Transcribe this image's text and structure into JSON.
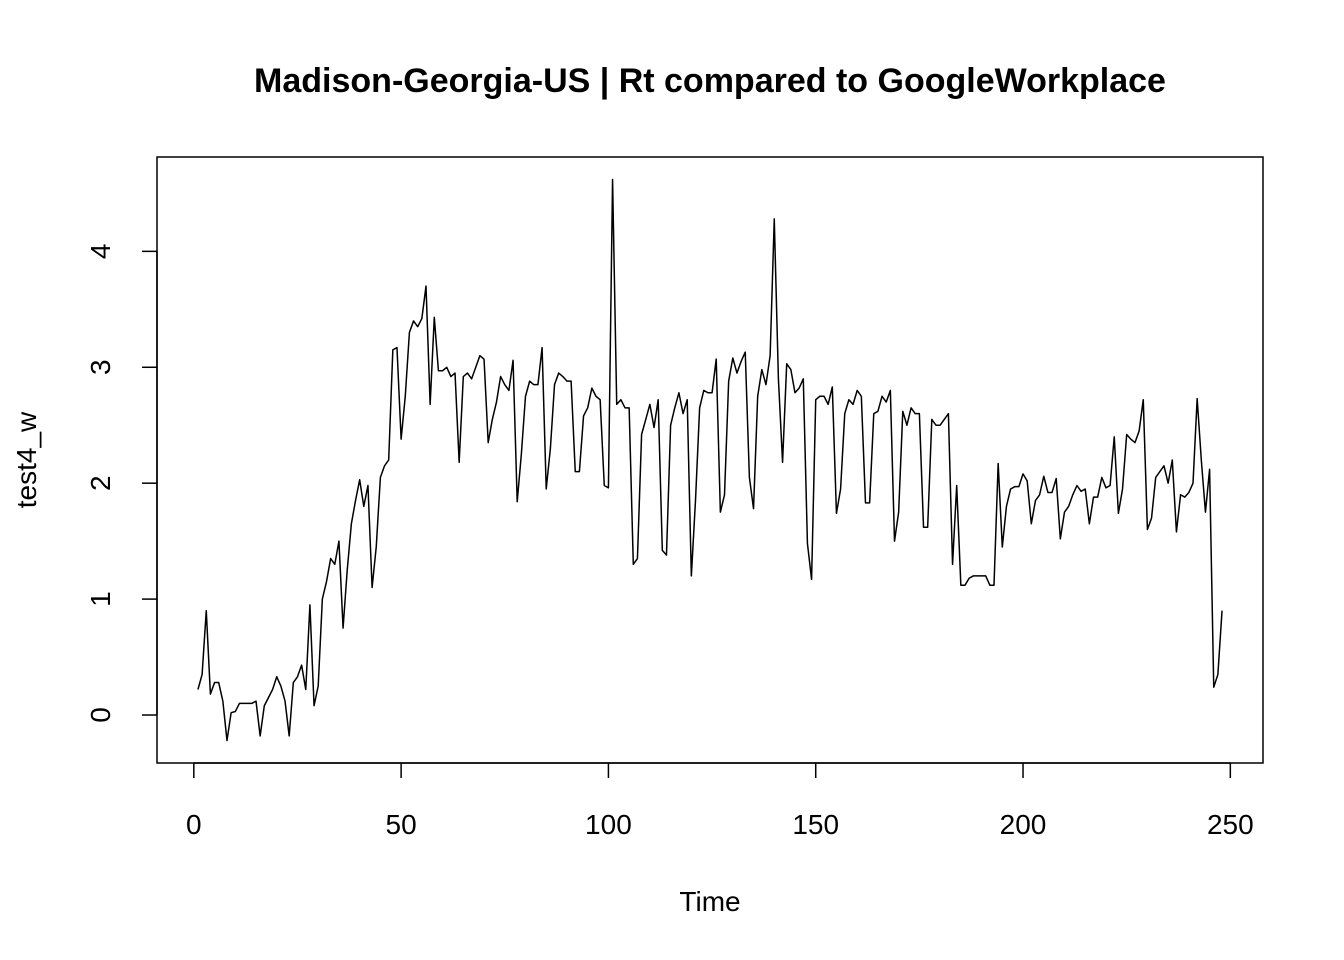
{
  "chart_data": {
    "type": "line",
    "title": "Madison-Georgia-US | Rt compared to GoogleWorkplace",
    "x_label": "Time",
    "y_label": "test4_w",
    "x": [
      1,
      2,
      3,
      4,
      5,
      6,
      7,
      8,
      9,
      10,
      11,
      12,
      13,
      14,
      15,
      16,
      17,
      18,
      19,
      20,
      21,
      22,
      23,
      24,
      25,
      26,
      27,
      28,
      29,
      30,
      31,
      32,
      33,
      34,
      35,
      36,
      37,
      38,
      39,
      40,
      41,
      42,
      43,
      44,
      45,
      46,
      47,
      48,
      49,
      50,
      51,
      52,
      53,
      54,
      55,
      56,
      57,
      58,
      59,
      60,
      61,
      62,
      63,
      64,
      65,
      66,
      67,
      68,
      69,
      70,
      71,
      72,
      73,
      74,
      75,
      76,
      77,
      78,
      79,
      80,
      81,
      82,
      83,
      84,
      85,
      86,
      87,
      88,
      89,
      90,
      91,
      92,
      93,
      94,
      95,
      96,
      97,
      98,
      99,
      100,
      101,
      102,
      103,
      104,
      105,
      106,
      107,
      108,
      109,
      110,
      111,
      112,
      113,
      114,
      115,
      116,
      117,
      118,
      119,
      120,
      121,
      122,
      123,
      124,
      125,
      126,
      127,
      128,
      129,
      130,
      131,
      132,
      133,
      134,
      135,
      136,
      137,
      138,
      139,
      140,
      141,
      142,
      143,
      144,
      145,
      146,
      147,
      148,
      149,
      150,
      151,
      152,
      153,
      154,
      155,
      156,
      157,
      158,
      159,
      160,
      161,
      162,
      163,
      164,
      165,
      166,
      167,
      168,
      169,
      170,
      171,
      172,
      173,
      174,
      175,
      176,
      177,
      178,
      179,
      180,
      181,
      182,
      183,
      184,
      185,
      186,
      187,
      188,
      189,
      190,
      191,
      192,
      193,
      194,
      195,
      196,
      197,
      198,
      199,
      200,
      201,
      202,
      203,
      204,
      205,
      206,
      207,
      208,
      209,
      210,
      211,
      212,
      213,
      214,
      215,
      216,
      217,
      218,
      219,
      220,
      221,
      222,
      223,
      224,
      225,
      226,
      227,
      228,
      229,
      230,
      231,
      232,
      233,
      234,
      235,
      236,
      237,
      238,
      239,
      240,
      241,
      242,
      243,
      244,
      245,
      246,
      247,
      248
    ],
    "series": [
      {
        "name": "test4_w",
        "color": "#000000",
        "values": [
          0.22,
          0.35,
          0.9,
          0.18,
          0.28,
          0.28,
          0.12,
          -0.22,
          0.02,
          0.03,
          0.1,
          0.1,
          0.1,
          0.1,
          0.12,
          -0.18,
          0.08,
          0.15,
          0.22,
          0.33,
          0.25,
          0.12,
          -0.18,
          0.28,
          0.33,
          0.43,
          0.22,
          0.95,
          0.08,
          0.25,
          1.0,
          1.15,
          1.35,
          1.3,
          1.5,
          0.75,
          1.25,
          1.65,
          1.85,
          2.03,
          1.8,
          1.98,
          1.1,
          1.45,
          2.05,
          2.15,
          2.2,
          3.15,
          3.17,
          2.38,
          2.75,
          3.3,
          3.4,
          3.35,
          3.42,
          3.7,
          2.68,
          3.43,
          2.97,
          2.97,
          3.0,
          2.92,
          2.95,
          2.18,
          2.92,
          2.95,
          2.9,
          3.0,
          3.1,
          3.07,
          2.35,
          2.55,
          2.7,
          2.92,
          2.85,
          2.8,
          3.06,
          1.84,
          2.25,
          2.75,
          2.88,
          2.85,
          2.85,
          3.17,
          1.95,
          2.3,
          2.85,
          2.95,
          2.92,
          2.88,
          2.88,
          2.1,
          2.1,
          2.58,
          2.65,
          2.82,
          2.75,
          2.72,
          1.98,
          1.96,
          4.62,
          2.68,
          2.72,
          2.65,
          2.65,
          1.3,
          1.35,
          2.42,
          2.55,
          2.68,
          2.48,
          2.72,
          1.42,
          1.38,
          2.5,
          2.65,
          2.78,
          2.6,
          2.72,
          1.2,
          1.85,
          2.65,
          2.8,
          2.78,
          2.78,
          3.07,
          1.75,
          1.9,
          2.88,
          3.08,
          2.95,
          3.05,
          3.13,
          2.05,
          1.78,
          2.75,
          2.98,
          2.85,
          3.1,
          4.28,
          2.9,
          2.18,
          3.03,
          2.98,
          2.78,
          2.82,
          2.9,
          1.48,
          1.17,
          2.72,
          2.75,
          2.75,
          2.68,
          2.83,
          1.74,
          1.95,
          2.6,
          2.72,
          2.68,
          2.8,
          2.75,
          1.83,
          1.83,
          2.6,
          2.62,
          2.75,
          2.7,
          2.8,
          1.5,
          1.75,
          2.62,
          2.5,
          2.65,
          2.6,
          2.6,
          1.62,
          1.62,
          2.55,
          2.5,
          2.5,
          2.55,
          2.6,
          1.3,
          1.98,
          1.12,
          1.12,
          1.18,
          1.2,
          1.2,
          1.2,
          1.2,
          1.12,
          1.12,
          2.17,
          1.45,
          1.8,
          1.95,
          1.97,
          1.97,
          2.08,
          2.02,
          1.65,
          1.85,
          1.9,
          2.06,
          1.92,
          1.92,
          2.04,
          1.52,
          1.75,
          1.8,
          1.9,
          1.98,
          1.93,
          1.95,
          1.65,
          1.88,
          1.88,
          2.05,
          1.96,
          1.98,
          2.4,
          1.74,
          1.95,
          2.42,
          2.38,
          2.35,
          2.45,
          2.72,
          1.6,
          1.7,
          2.05,
          2.1,
          2.15,
          2.0,
          2.2,
          1.58,
          1.9,
          1.88,
          1.92,
          2.0,
          2.73,
          2.2,
          1.75,
          2.12,
          0.24,
          0.35,
          0.9
        ]
      }
    ],
    "xlim": [
      -8.88,
      257.88
    ],
    "xticks": [
      0,
      50,
      100,
      150,
      200,
      250
    ],
    "ylim": [
      -0.414,
      4.814
    ],
    "yticks": [
      0,
      1,
      2,
      3,
      4
    ]
  }
}
